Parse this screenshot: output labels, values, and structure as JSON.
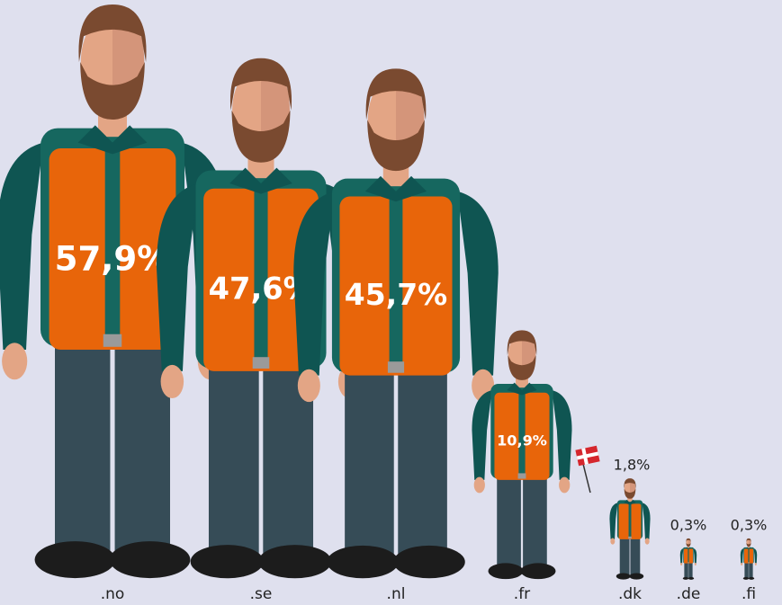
{
  "chart_data": {
    "type": "pictograph",
    "categories": [
      ".no",
      ".se",
      ".nl",
      ".fr",
      ".dk",
      ".de",
      ".fi"
    ],
    "values": [
      57.9,
      47.6,
      45.7,
      10.9,
      1.8,
      0.3,
      0.3
    ],
    "value_labels": [
      "57,9%",
      "47,6%",
      "45,7%",
      "10,9%",
      "1,8%",
      "0,3%",
      "0,3%"
    ],
    "color": "#e8650a"
  }
}
